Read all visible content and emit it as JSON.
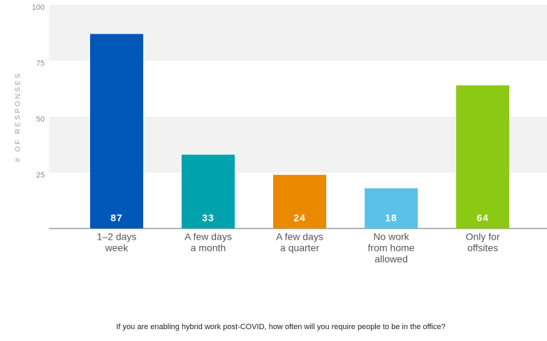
{
  "chart_data": {
    "type": "bar",
    "y_label": "# OF RESPONSES",
    "caption": "If you are enabling hybrid work post-COVID, how often will you require people to be in the office?",
    "categories": [
      [
        "1–2 days",
        "week"
      ],
      [
        "A few days",
        "a month"
      ],
      [
        "A few days",
        "a quarter"
      ],
      [
        "No work",
        "from home",
        "allowed"
      ],
      [
        "Only for",
        "offsites"
      ]
    ],
    "values": [
      87,
      33,
      24,
      18,
      64
    ],
    "colors": [
      "#0057b8",
      "#00a3ad",
      "#ea8a00",
      "#5bc2e7",
      "#8cc914"
    ],
    "ylim": [
      0,
      100
    ],
    "yticks": [
      25,
      50,
      75,
      100
    ],
    "grid": "bands"
  }
}
